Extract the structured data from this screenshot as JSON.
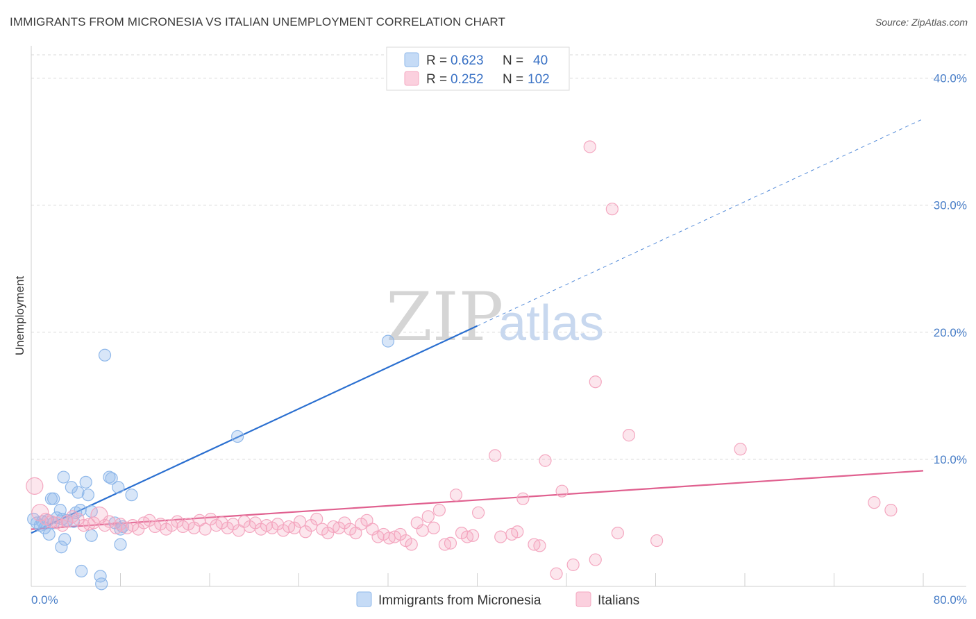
{
  "title": "IMMIGRANTS FROM MICRONESIA VS ITALIAN UNEMPLOYMENT CORRELATION CHART",
  "source": "Source: ZipAtlas.com",
  "watermark": {
    "zip": "ZIP",
    "atlas": "atlas"
  },
  "chart_data": {
    "type": "scatter",
    "xlabel": "",
    "ylabel": "Unemployment",
    "xlim": [
      0,
      80
    ],
    "ylim": [
      0,
      42
    ],
    "x_tick_labels": [
      {
        "value": 0,
        "label": "0.0%"
      },
      {
        "value": 80,
        "label": "80.0%"
      }
    ],
    "y_ticks": [
      {
        "value": 10,
        "label": "10.0%"
      },
      {
        "value": 20,
        "label": "20.0%"
      },
      {
        "value": 30,
        "label": "30.0%"
      },
      {
        "value": 40,
        "label": "40.0%"
      }
    ],
    "x_minor_ticks": [
      0,
      8,
      16,
      24,
      32,
      40,
      48,
      56,
      64,
      72,
      80
    ],
    "grid": true,
    "legend": {
      "placement": "top-center",
      "entries": [
        {
          "r_label": "R =",
          "r_value": "0.623",
          "n_label": "N =",
          "n_value": "40",
          "color": "#8fb8ea"
        },
        {
          "r_label": "R =",
          "r_value": "0.252",
          "n_label": "N =",
          "n_value": "102",
          "color": "#f4a7c0"
        }
      ]
    },
    "series": [
      {
        "name": "Immigrants from Micronesia",
        "color": "#8fb8ea",
        "line_color": "#2a6fd0",
        "trend": {
          "x0": 0,
          "y0": 4.2,
          "x1": 40,
          "y1": 20.5,
          "dash_to_x": 80,
          "dash_to_y": 36.8
        },
        "points": [
          [
            0.2,
            5.3
          ],
          [
            0.5,
            5.0
          ],
          [
            0.8,
            4.8
          ],
          [
            1.0,
            5.1
          ],
          [
            1.2,
            4.6
          ],
          [
            1.5,
            5.2
          ],
          [
            1.6,
            4.1
          ],
          [
            1.8,
            6.9
          ],
          [
            2.0,
            5.0
          ],
          [
            2.0,
            6.9
          ],
          [
            2.3,
            5.4
          ],
          [
            2.6,
            6.0
          ],
          [
            2.8,
            5.3
          ],
          [
            2.7,
            3.1
          ],
          [
            2.9,
            8.6
          ],
          [
            3.0,
            3.7
          ],
          [
            3.2,
            5.2
          ],
          [
            3.6,
            7.8
          ],
          [
            3.8,
            5.1
          ],
          [
            4.0,
            5.8
          ],
          [
            4.2,
            7.4
          ],
          [
            4.4,
            6.0
          ],
          [
            4.5,
            1.2
          ],
          [
            4.9,
            8.2
          ],
          [
            5.1,
            7.2
          ],
          [
            5.4,
            4.0
          ],
          [
            5.4,
            5.9
          ],
          [
            6.2,
            0.8
          ],
          [
            6.3,
            0.2
          ],
          [
            6.6,
            18.2
          ],
          [
            7.0,
            8.6
          ],
          [
            7.2,
            8.5
          ],
          [
            7.5,
            5.0
          ],
          [
            7.8,
            7.8
          ],
          [
            8.0,
            4.5
          ],
          [
            8.0,
            3.3
          ],
          [
            8.2,
            4.7
          ],
          [
            9.0,
            7.2
          ],
          [
            18.5,
            11.8
          ],
          [
            32.0,
            19.3
          ]
        ]
      },
      {
        "name": "Italians",
        "color": "#f4a7c0",
        "line_color": "#e0608f",
        "trend": {
          "x0": 0,
          "y0": 4.5,
          "x1": 80,
          "y1": 9.1
        },
        "points": [
          [
            0.3,
            7.9
          ],
          [
            0.8,
            5.8
          ],
          [
            1.3,
            5.3
          ],
          [
            1.8,
            5.1
          ],
          [
            2.3,
            5.0
          ],
          [
            2.8,
            4.8
          ],
          [
            3.2,
            5.1
          ],
          [
            3.7,
            5.5
          ],
          [
            4.2,
            5.3
          ],
          [
            4.7,
            4.8
          ],
          [
            5.2,
            4.9
          ],
          [
            5.6,
            5.0
          ],
          [
            6.1,
            5.6
          ],
          [
            6.6,
            4.8
          ],
          [
            7.0,
            5.1
          ],
          [
            7.6,
            4.6
          ],
          [
            8.0,
            4.9
          ],
          [
            8.6,
            4.6
          ],
          [
            9.1,
            4.8
          ],
          [
            9.6,
            4.5
          ],
          [
            10.1,
            5.0
          ],
          [
            10.6,
            5.2
          ],
          [
            11.1,
            4.7
          ],
          [
            11.6,
            4.9
          ],
          [
            12.1,
            4.5
          ],
          [
            12.6,
            4.8
          ],
          [
            13.1,
            5.1
          ],
          [
            13.6,
            4.7
          ],
          [
            14.1,
            4.9
          ],
          [
            14.6,
            4.6
          ],
          [
            15.1,
            5.2
          ],
          [
            15.6,
            4.5
          ],
          [
            16.1,
            5.3
          ],
          [
            16.6,
            4.8
          ],
          [
            17.1,
            5.0
          ],
          [
            17.6,
            4.6
          ],
          [
            18.1,
            4.9
          ],
          [
            18.6,
            4.4
          ],
          [
            19.1,
            5.1
          ],
          [
            19.6,
            4.7
          ],
          [
            20.1,
            5.0
          ],
          [
            20.6,
            4.5
          ],
          [
            21.1,
            4.8
          ],
          [
            21.6,
            4.6
          ],
          [
            22.1,
            4.9
          ],
          [
            22.6,
            4.4
          ],
          [
            23.1,
            4.7
          ],
          [
            23.6,
            4.6
          ],
          [
            24.1,
            5.1
          ],
          [
            24.6,
            4.3
          ],
          [
            25.1,
            4.8
          ],
          [
            25.6,
            5.3
          ],
          [
            26.1,
            4.5
          ],
          [
            26.6,
            4.2
          ],
          [
            27.1,
            4.7
          ],
          [
            27.6,
            4.6
          ],
          [
            28.1,
            5.0
          ],
          [
            28.6,
            4.5
          ],
          [
            29.1,
            4.2
          ],
          [
            29.6,
            4.9
          ],
          [
            30.1,
            5.2
          ],
          [
            30.6,
            4.5
          ],
          [
            31.1,
            3.9
          ],
          [
            31.6,
            4.1
          ],
          [
            32.1,
            3.8
          ],
          [
            32.6,
            3.9
          ],
          [
            33.1,
            4.1
          ],
          [
            33.6,
            3.6
          ],
          [
            34.1,
            3.3
          ],
          [
            34.6,
            5.0
          ],
          [
            35.1,
            4.4
          ],
          [
            35.6,
            5.5
          ],
          [
            36.1,
            4.6
          ],
          [
            36.6,
            6.0
          ],
          [
            37.1,
            3.3
          ],
          [
            37.6,
            3.4
          ],
          [
            38.1,
            7.2
          ],
          [
            38.6,
            4.2
          ],
          [
            39.1,
            3.9
          ],
          [
            39.6,
            4.0
          ],
          [
            40.1,
            5.8
          ],
          [
            41.6,
            10.3
          ],
          [
            42.1,
            3.9
          ],
          [
            43.1,
            4.1
          ],
          [
            43.6,
            4.3
          ],
          [
            44.1,
            6.9
          ],
          [
            45.1,
            3.3
          ],
          [
            45.6,
            3.2
          ],
          [
            46.1,
            9.9
          ],
          [
            47.1,
            1.0
          ],
          [
            47.6,
            7.5
          ],
          [
            48.6,
            1.7
          ],
          [
            50.1,
            34.6
          ],
          [
            50.6,
            2.1
          ],
          [
            50.6,
            16.1
          ],
          [
            52.1,
            29.7
          ],
          [
            52.6,
            4.2
          ],
          [
            53.6,
            11.9
          ],
          [
            56.1,
            3.6
          ],
          [
            63.6,
            10.8
          ],
          [
            75.6,
            6.6
          ],
          [
            77.1,
            6.0
          ]
        ]
      }
    ]
  },
  "bottom_legend": [
    {
      "label": "Immigrants from Micronesia",
      "color": "#8fb8ea"
    },
    {
      "label": "Italians",
      "color": "#f4a7c0"
    }
  ]
}
